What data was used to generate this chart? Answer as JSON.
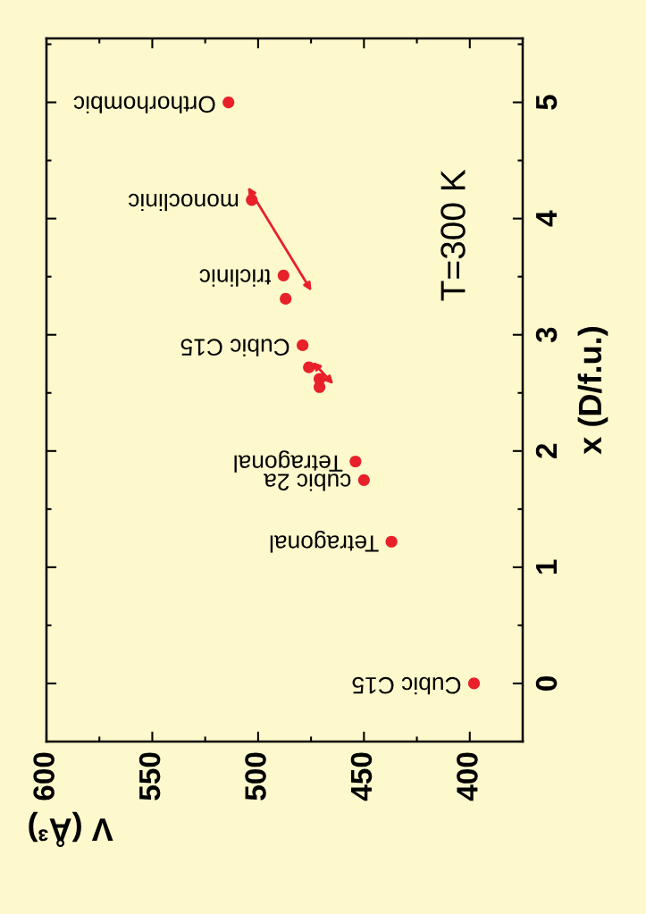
{
  "chart_data": {
    "type": "scatter",
    "xlabel": "V (Å³)",
    "ylabel": "x (D/f.u.)",
    "x": [
      398,
      437,
      450,
      454,
      471,
      471,
      476,
      479,
      487,
      488,
      503,
      514
    ],
    "values": [
      0,
      1.22,
      1.75,
      1.91,
      2.55,
      2.62,
      2.72,
      2.91,
      3.31,
      3.51,
      4.16,
      5.0
    ],
    "color": "#e8202a",
    "marker": "circle",
    "grid": false,
    "xlim": [
      600,
      375
    ],
    "xticks": [
      400,
      450,
      500,
      550,
      600
    ],
    "ylim": [
      -0.5,
      5.55
    ],
    "yticks": [
      0,
      1,
      2,
      3,
      4,
      5
    ],
    "annotations": [
      {
        "text": "Cubic C15",
        "x": 398,
        "y": 0
      },
      {
        "text": "Tetragonal",
        "x": 437,
        "y": 1.22
      },
      {
        "text": "cubic 2a",
        "x": 450,
        "y": 1.75
      },
      {
        "text": "Tetragonal",
        "x": 454,
        "y": 1.91
      },
      {
        "text": "Cubic C15",
        "x": 479,
        "y": 2.91
      },
      {
        "text": "triclinic",
        "x": 488,
        "y": 3.51
      },
      {
        "text": "monoclinic",
        "x": 503,
        "y": 4.16
      },
      {
        "text": "Orthorhombic",
        "x": 514,
        "y": 5.0
      },
      "T=300 K"
    ]
  }
}
